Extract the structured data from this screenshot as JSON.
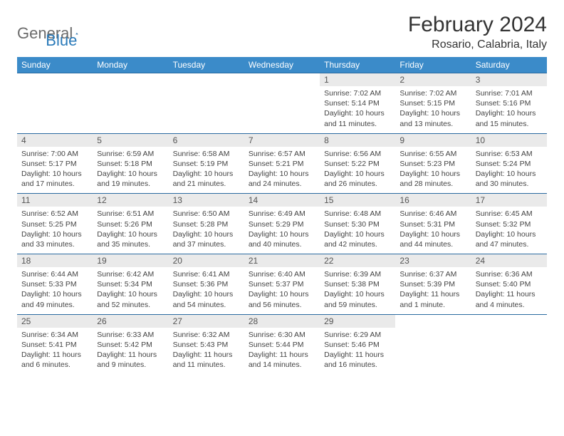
{
  "logo": {
    "word1": "General",
    "word2": "Blue"
  },
  "title": "February 2024",
  "location": "Rosario, Calabria, Italy",
  "dayHeaders": [
    "Sunday",
    "Monday",
    "Tuesday",
    "Wednesday",
    "Thursday",
    "Friday",
    "Saturday"
  ],
  "colors": {
    "header_bg": "#3b8bc9",
    "header_text": "#ffffff",
    "daynum_bg": "#eaeaea",
    "border": "#2a6aa0",
    "body_text": "#444444",
    "title_text": "#333333",
    "logo_gray": "#6b6b6b",
    "logo_blue": "#2a7ab9",
    "page_bg": "#ffffff"
  },
  "typography": {
    "title_fontsize": 30,
    "location_fontsize": 16,
    "header_fontsize": 12,
    "daynum_fontsize": 12,
    "cell_fontsize": 10.5
  },
  "weeks": [
    {
      "nums": [
        "",
        "",
        "",
        "",
        "1",
        "2",
        "3"
      ],
      "cells": [
        null,
        null,
        null,
        null,
        {
          "sunrise": "Sunrise: 7:02 AM",
          "sunset": "Sunset: 5:14 PM",
          "day1": "Daylight: 10 hours",
          "day2": "and 11 minutes."
        },
        {
          "sunrise": "Sunrise: 7:02 AM",
          "sunset": "Sunset: 5:15 PM",
          "day1": "Daylight: 10 hours",
          "day2": "and 13 minutes."
        },
        {
          "sunrise": "Sunrise: 7:01 AM",
          "sunset": "Sunset: 5:16 PM",
          "day1": "Daylight: 10 hours",
          "day2": "and 15 minutes."
        }
      ]
    },
    {
      "nums": [
        "4",
        "5",
        "6",
        "7",
        "8",
        "9",
        "10"
      ],
      "cells": [
        {
          "sunrise": "Sunrise: 7:00 AM",
          "sunset": "Sunset: 5:17 PM",
          "day1": "Daylight: 10 hours",
          "day2": "and 17 minutes."
        },
        {
          "sunrise": "Sunrise: 6:59 AM",
          "sunset": "Sunset: 5:18 PM",
          "day1": "Daylight: 10 hours",
          "day2": "and 19 minutes."
        },
        {
          "sunrise": "Sunrise: 6:58 AM",
          "sunset": "Sunset: 5:19 PM",
          "day1": "Daylight: 10 hours",
          "day2": "and 21 minutes."
        },
        {
          "sunrise": "Sunrise: 6:57 AM",
          "sunset": "Sunset: 5:21 PM",
          "day1": "Daylight: 10 hours",
          "day2": "and 24 minutes."
        },
        {
          "sunrise": "Sunrise: 6:56 AM",
          "sunset": "Sunset: 5:22 PM",
          "day1": "Daylight: 10 hours",
          "day2": "and 26 minutes."
        },
        {
          "sunrise": "Sunrise: 6:55 AM",
          "sunset": "Sunset: 5:23 PM",
          "day1": "Daylight: 10 hours",
          "day2": "and 28 minutes."
        },
        {
          "sunrise": "Sunrise: 6:53 AM",
          "sunset": "Sunset: 5:24 PM",
          "day1": "Daylight: 10 hours",
          "day2": "and 30 minutes."
        }
      ]
    },
    {
      "nums": [
        "11",
        "12",
        "13",
        "14",
        "15",
        "16",
        "17"
      ],
      "cells": [
        {
          "sunrise": "Sunrise: 6:52 AM",
          "sunset": "Sunset: 5:25 PM",
          "day1": "Daylight: 10 hours",
          "day2": "and 33 minutes."
        },
        {
          "sunrise": "Sunrise: 6:51 AM",
          "sunset": "Sunset: 5:26 PM",
          "day1": "Daylight: 10 hours",
          "day2": "and 35 minutes."
        },
        {
          "sunrise": "Sunrise: 6:50 AM",
          "sunset": "Sunset: 5:28 PM",
          "day1": "Daylight: 10 hours",
          "day2": "and 37 minutes."
        },
        {
          "sunrise": "Sunrise: 6:49 AM",
          "sunset": "Sunset: 5:29 PM",
          "day1": "Daylight: 10 hours",
          "day2": "and 40 minutes."
        },
        {
          "sunrise": "Sunrise: 6:48 AM",
          "sunset": "Sunset: 5:30 PM",
          "day1": "Daylight: 10 hours",
          "day2": "and 42 minutes."
        },
        {
          "sunrise": "Sunrise: 6:46 AM",
          "sunset": "Sunset: 5:31 PM",
          "day1": "Daylight: 10 hours",
          "day2": "and 44 minutes."
        },
        {
          "sunrise": "Sunrise: 6:45 AM",
          "sunset": "Sunset: 5:32 PM",
          "day1": "Daylight: 10 hours",
          "day2": "and 47 minutes."
        }
      ]
    },
    {
      "nums": [
        "18",
        "19",
        "20",
        "21",
        "22",
        "23",
        "24"
      ],
      "cells": [
        {
          "sunrise": "Sunrise: 6:44 AM",
          "sunset": "Sunset: 5:33 PM",
          "day1": "Daylight: 10 hours",
          "day2": "and 49 minutes."
        },
        {
          "sunrise": "Sunrise: 6:42 AM",
          "sunset": "Sunset: 5:34 PM",
          "day1": "Daylight: 10 hours",
          "day2": "and 52 minutes."
        },
        {
          "sunrise": "Sunrise: 6:41 AM",
          "sunset": "Sunset: 5:36 PM",
          "day1": "Daylight: 10 hours",
          "day2": "and 54 minutes."
        },
        {
          "sunrise": "Sunrise: 6:40 AM",
          "sunset": "Sunset: 5:37 PM",
          "day1": "Daylight: 10 hours",
          "day2": "and 56 minutes."
        },
        {
          "sunrise": "Sunrise: 6:39 AM",
          "sunset": "Sunset: 5:38 PM",
          "day1": "Daylight: 10 hours",
          "day2": "and 59 minutes."
        },
        {
          "sunrise": "Sunrise: 6:37 AM",
          "sunset": "Sunset: 5:39 PM",
          "day1": "Daylight: 11 hours",
          "day2": "and 1 minute."
        },
        {
          "sunrise": "Sunrise: 6:36 AM",
          "sunset": "Sunset: 5:40 PM",
          "day1": "Daylight: 11 hours",
          "day2": "and 4 minutes."
        }
      ]
    },
    {
      "nums": [
        "25",
        "26",
        "27",
        "28",
        "29",
        "",
        ""
      ],
      "cells": [
        {
          "sunrise": "Sunrise: 6:34 AM",
          "sunset": "Sunset: 5:41 PM",
          "day1": "Daylight: 11 hours",
          "day2": "and 6 minutes."
        },
        {
          "sunrise": "Sunrise: 6:33 AM",
          "sunset": "Sunset: 5:42 PM",
          "day1": "Daylight: 11 hours",
          "day2": "and 9 minutes."
        },
        {
          "sunrise": "Sunrise: 6:32 AM",
          "sunset": "Sunset: 5:43 PM",
          "day1": "Daylight: 11 hours",
          "day2": "and 11 minutes."
        },
        {
          "sunrise": "Sunrise: 6:30 AM",
          "sunset": "Sunset: 5:44 PM",
          "day1": "Daylight: 11 hours",
          "day2": "and 14 minutes."
        },
        {
          "sunrise": "Sunrise: 6:29 AM",
          "sunset": "Sunset: 5:46 PM",
          "day1": "Daylight: 11 hours",
          "day2": "and 16 minutes."
        },
        null,
        null
      ]
    }
  ]
}
